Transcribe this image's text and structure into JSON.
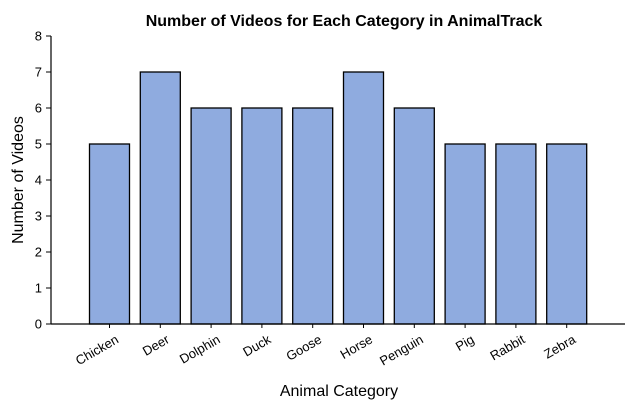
{
  "chart_data": {
    "type": "bar",
    "title": "Number of Videos for Each Category in AnimalTrack",
    "xlabel": "Animal Category",
    "ylabel": "Number of Videos",
    "categories": [
      "Chicken",
      "Deer",
      "Dolphin",
      "Duck",
      "Goose",
      "Horse",
      "Penguin",
      "Pig",
      "Rabbit",
      "Zebra"
    ],
    "values": [
      5,
      7,
      6,
      6,
      6,
      7,
      6,
      5,
      5,
      5
    ],
    "ylim": [
      0,
      8
    ],
    "yticks": [
      0,
      1,
      2,
      3,
      4,
      5,
      6,
      7,
      8
    ],
    "grid": false,
    "bar_color": "#8fabdf",
    "bar_edge_color": "#000000"
  }
}
